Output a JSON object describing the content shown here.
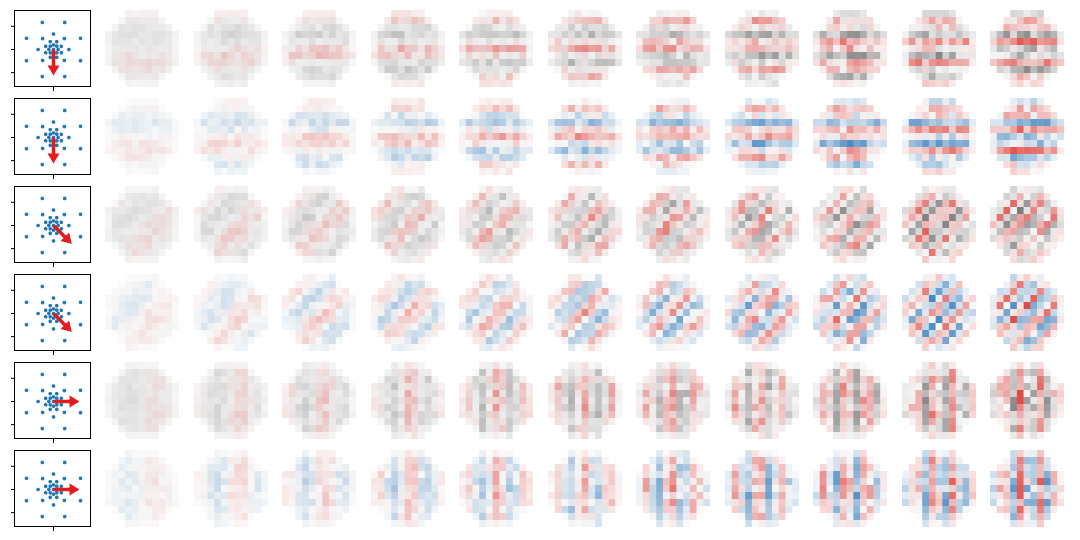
{
  "figure": {
    "rows": [
      {
        "palette": "gray",
        "arrow_angle_deg": -90
      },
      {
        "palette": "blue",
        "arrow_angle_deg": -90
      },
      {
        "palette": "gray",
        "arrow_angle_deg": -45
      },
      {
        "palette": "blue",
        "arrow_angle_deg": -45
      },
      {
        "palette": "gray",
        "arrow_angle_deg": 0
      },
      {
        "palette": "blue",
        "arrow_angle_deg": 0
      }
    ],
    "tiles_per_row": 11,
    "filter_grid_size": 11,
    "colors": {
      "marker": "#1f77b4",
      "arrow": "#e41a1c",
      "positive_red": "#de2d26",
      "negative_blue": "#2171b5",
      "negative_gray": "#6e6e6e",
      "neutral": "#f7f7f7"
    }
  }
}
